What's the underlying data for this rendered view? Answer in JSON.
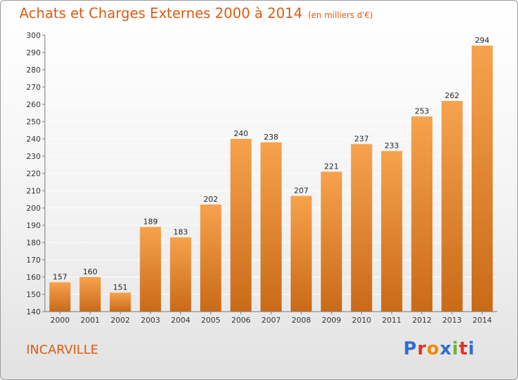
{
  "header": {
    "title": "Achats et Charges Externes 2000 à 2014",
    "subtitle": "(en milliers d'€)"
  },
  "footer": {
    "commune": "INCARVILLE",
    "logo": "Proxiti",
    "logo_colors": [
      "#2f6fd0",
      "#e4312b",
      "#f18a00",
      "#2f6fd0",
      "#6bb33b",
      "#e4312b",
      "#2f6fd0"
    ]
  },
  "colors": {
    "bar_top": "#f7a24e",
    "bar_bottom": "#c96a17",
    "grid": "#ffffff",
    "axis": "#777777",
    "text_accent": "#e05a10"
  },
  "chart_data": {
    "type": "bar",
    "title": "Achats et Charges Externes 2000 à 2014",
    "subtitle": "(en milliers d'€)",
    "categories": [
      "2000",
      "2001",
      "2002",
      "2003",
      "2004",
      "2005",
      "2006",
      "2007",
      "2008",
      "2009",
      "2010",
      "2011",
      "2012",
      "2013",
      "2014"
    ],
    "values": [
      157,
      160,
      151,
      189,
      183,
      202,
      240,
      238,
      207,
      221,
      237,
      233,
      253,
      262,
      294
    ],
    "ylim": [
      140,
      300
    ],
    "yticks": [
      140,
      150,
      160,
      170,
      180,
      190,
      200,
      210,
      220,
      230,
      240,
      250,
      260,
      270,
      280,
      290,
      300
    ],
    "grid": true,
    "xlabel": "",
    "ylabel": ""
  }
}
